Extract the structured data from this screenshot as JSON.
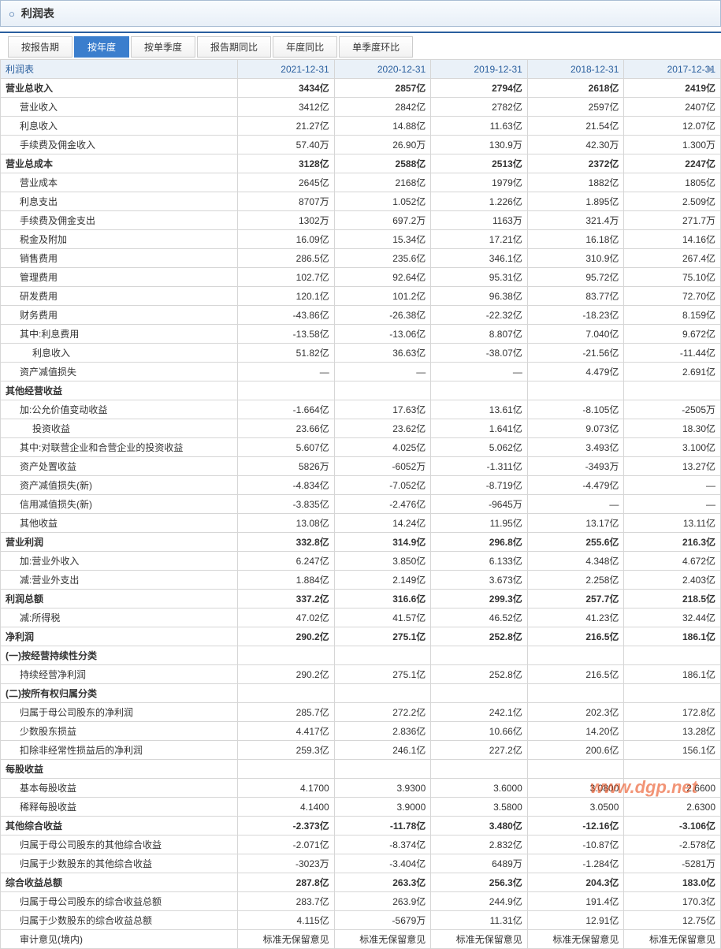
{
  "header": {
    "title": "利润表"
  },
  "tabs": [
    "按报告期",
    "按年度",
    "按单季度",
    "报告期同比",
    "年度同比",
    "单季度环比"
  ],
  "activeTab": 1,
  "columns": [
    "利润表",
    "2021-12-31",
    "2020-12-31",
    "2019-12-31",
    "2018-12-31",
    "2017-12-31"
  ],
  "rows": [
    {
      "n": "营业总收入",
      "b": 1,
      "l": 0,
      "v": [
        "3434亿",
        "2857亿",
        "2794亿",
        "2618亿",
        "2419亿"
      ]
    },
    {
      "n": "营业收入",
      "l": 1,
      "v": [
        "3412亿",
        "2842亿",
        "2782亿",
        "2597亿",
        "2407亿"
      ]
    },
    {
      "n": "利息收入",
      "l": 1,
      "v": [
        "21.27亿",
        "14.88亿",
        "11.63亿",
        "21.54亿",
        "12.07亿"
      ]
    },
    {
      "n": "手续费及佣金收入",
      "l": 1,
      "v": [
        "57.40万",
        "26.90万",
        "130.9万",
        "42.30万",
        "1.300万"
      ]
    },
    {
      "n": "营业总成本",
      "b": 1,
      "l": 0,
      "v": [
        "3128亿",
        "2588亿",
        "2513亿",
        "2372亿",
        "2247亿"
      ]
    },
    {
      "n": "营业成本",
      "l": 1,
      "v": [
        "2645亿",
        "2168亿",
        "1979亿",
        "1882亿",
        "1805亿"
      ]
    },
    {
      "n": "利息支出",
      "l": 1,
      "v": [
        "8707万",
        "1.052亿",
        "1.226亿",
        "1.895亿",
        "2.509亿"
      ]
    },
    {
      "n": "手续费及佣金支出",
      "l": 1,
      "v": [
        "1302万",
        "697.2万",
        "1163万",
        "321.4万",
        "271.7万"
      ]
    },
    {
      "n": "税金及附加",
      "l": 1,
      "v": [
        "16.09亿",
        "15.34亿",
        "17.21亿",
        "16.18亿",
        "14.16亿"
      ]
    },
    {
      "n": "销售费用",
      "l": 1,
      "v": [
        "286.5亿",
        "235.6亿",
        "346.1亿",
        "310.9亿",
        "267.4亿"
      ]
    },
    {
      "n": "管理费用",
      "l": 1,
      "v": [
        "102.7亿",
        "92.64亿",
        "95.31亿",
        "95.72亿",
        "75.10亿"
      ]
    },
    {
      "n": "研发费用",
      "l": 1,
      "v": [
        "120.1亿",
        "101.2亿",
        "96.38亿",
        "83.77亿",
        "72.70亿"
      ]
    },
    {
      "n": "财务费用",
      "l": 1,
      "v": [
        "-43.86亿",
        "-26.38亿",
        "-22.32亿",
        "-18.23亿",
        "8.159亿"
      ]
    },
    {
      "n": "其中:利息费用",
      "l": 1,
      "v": [
        "-13.58亿",
        "-13.06亿",
        "8.807亿",
        "7.040亿",
        "9.672亿"
      ]
    },
    {
      "n": "利息收入",
      "l": 2,
      "v": [
        "51.82亿",
        "36.63亿",
        "-38.07亿",
        "-21.56亿",
        "-11.44亿"
      ]
    },
    {
      "n": "资产减值损失",
      "l": 1,
      "v": [
        "—",
        "—",
        "—",
        "4.479亿",
        "2.691亿"
      ]
    },
    {
      "n": "其他经营收益",
      "b": 1,
      "l": 0,
      "v": [
        "",
        "",
        "",
        "",
        ""
      ]
    },
    {
      "n": "加:公允价值变动收益",
      "l": 1,
      "v": [
        "-1.664亿",
        "17.63亿",
        "13.61亿",
        "-8.105亿",
        "-2505万"
      ]
    },
    {
      "n": "投资收益",
      "l": 2,
      "v": [
        "23.66亿",
        "23.62亿",
        "1.641亿",
        "9.073亿",
        "18.30亿"
      ]
    },
    {
      "n": "其中:对联营企业和合营企业的投资收益",
      "l": 1,
      "v": [
        "5.607亿",
        "4.025亿",
        "5.062亿",
        "3.493亿",
        "3.100亿"
      ]
    },
    {
      "n": "资产处置收益",
      "l": 1,
      "v": [
        "5826万",
        "-6052万",
        "-1.311亿",
        "-3493万",
        "13.27亿"
      ]
    },
    {
      "n": "资产减值损失(新)",
      "l": 1,
      "v": [
        "-4.834亿",
        "-7.052亿",
        "-8.719亿",
        "-4.479亿",
        "—"
      ]
    },
    {
      "n": "信用减值损失(新)",
      "l": 1,
      "v": [
        "-3.835亿",
        "-2.476亿",
        "-9645万",
        "—",
        "—"
      ]
    },
    {
      "n": "其他收益",
      "l": 1,
      "v": [
        "13.08亿",
        "14.24亿",
        "11.95亿",
        "13.17亿",
        "13.11亿"
      ]
    },
    {
      "n": "营业利润",
      "b": 1,
      "l": 0,
      "v": [
        "332.8亿",
        "314.9亿",
        "296.8亿",
        "255.6亿",
        "216.3亿"
      ]
    },
    {
      "n": "加:营业外收入",
      "l": 1,
      "v": [
        "6.247亿",
        "3.850亿",
        "6.133亿",
        "4.348亿",
        "4.672亿"
      ]
    },
    {
      "n": "减:营业外支出",
      "l": 1,
      "v": [
        "1.884亿",
        "2.149亿",
        "3.673亿",
        "2.258亿",
        "2.403亿"
      ]
    },
    {
      "n": "利润总额",
      "b": 1,
      "l": 0,
      "v": [
        "337.2亿",
        "316.6亿",
        "299.3亿",
        "257.7亿",
        "218.5亿"
      ]
    },
    {
      "n": "减:所得税",
      "l": 1,
      "v": [
        "47.02亿",
        "41.57亿",
        "46.52亿",
        "41.23亿",
        "32.44亿"
      ]
    },
    {
      "n": "净利润",
      "b": 1,
      "l": 0,
      "v": [
        "290.2亿",
        "275.1亿",
        "252.8亿",
        "216.5亿",
        "186.1亿"
      ]
    },
    {
      "n": "(一)按经营持续性分类",
      "b": 1,
      "l": 0,
      "v": [
        "",
        "",
        "",
        "",
        ""
      ]
    },
    {
      "n": "持续经营净利润",
      "l": 1,
      "v": [
        "290.2亿",
        "275.1亿",
        "252.8亿",
        "216.5亿",
        "186.1亿"
      ]
    },
    {
      "n": "(二)按所有权归属分类",
      "b": 1,
      "l": 0,
      "v": [
        "",
        "",
        "",
        "",
        ""
      ]
    },
    {
      "n": "归属于母公司股东的净利润",
      "l": 1,
      "v": [
        "285.7亿",
        "272.2亿",
        "242.1亿",
        "202.3亿",
        "172.8亿"
      ]
    },
    {
      "n": "少数股东损益",
      "l": 1,
      "v": [
        "4.417亿",
        "2.836亿",
        "10.66亿",
        "14.20亿",
        "13.28亿"
      ]
    },
    {
      "n": "扣除非经常性损益后的净利润",
      "l": 1,
      "v": [
        "259.3亿",
        "246.1亿",
        "227.2亿",
        "200.6亿",
        "156.1亿"
      ]
    },
    {
      "n": "每股收益",
      "b": 1,
      "l": 0,
      "v": [
        "",
        "",
        "",
        "",
        ""
      ]
    },
    {
      "n": "基本每股收益",
      "l": 1,
      "v": [
        "4.1700",
        "3.9300",
        "3.6000",
        "3.0800",
        "2.6600"
      ]
    },
    {
      "n": "稀释每股收益",
      "l": 1,
      "v": [
        "4.1400",
        "3.9000",
        "3.5800",
        "3.0500",
        "2.6300"
      ]
    },
    {
      "n": "其他综合收益",
      "b": 1,
      "l": 0,
      "v": [
        "-2.373亿",
        "-11.78亿",
        "3.480亿",
        "-12.16亿",
        "-3.106亿"
      ]
    },
    {
      "n": "归属于母公司股东的其他综合收益",
      "l": 1,
      "v": [
        "-2.071亿",
        "-8.374亿",
        "2.832亿",
        "-10.87亿",
        "-2.578亿"
      ]
    },
    {
      "n": "归属于少数股东的其他综合收益",
      "l": 1,
      "v": [
        "-3023万",
        "-3.404亿",
        "6489万",
        "-1.284亿",
        "-5281万"
      ]
    },
    {
      "n": "综合收益总额",
      "b": 1,
      "l": 0,
      "v": [
        "287.8亿",
        "263.3亿",
        "256.3亿",
        "204.3亿",
        "183.0亿"
      ]
    },
    {
      "n": "归属于母公司股东的综合收益总额",
      "l": 1,
      "v": [
        "283.7亿",
        "263.9亿",
        "244.9亿",
        "191.4亿",
        "170.3亿"
      ]
    },
    {
      "n": "归属于少数股东的综合收益总额",
      "l": 1,
      "v": [
        "4.115亿",
        "-5679万",
        "11.31亿",
        "12.91亿",
        "12.75亿"
      ]
    },
    {
      "n": "审计意见(境内)",
      "l": 1,
      "v": [
        "标准无保留意见",
        "标准无保留意见",
        "标准无保留意见",
        "标准无保留意见",
        "标准无保留意见"
      ]
    }
  ],
  "watermark": "www.dgp.net"
}
